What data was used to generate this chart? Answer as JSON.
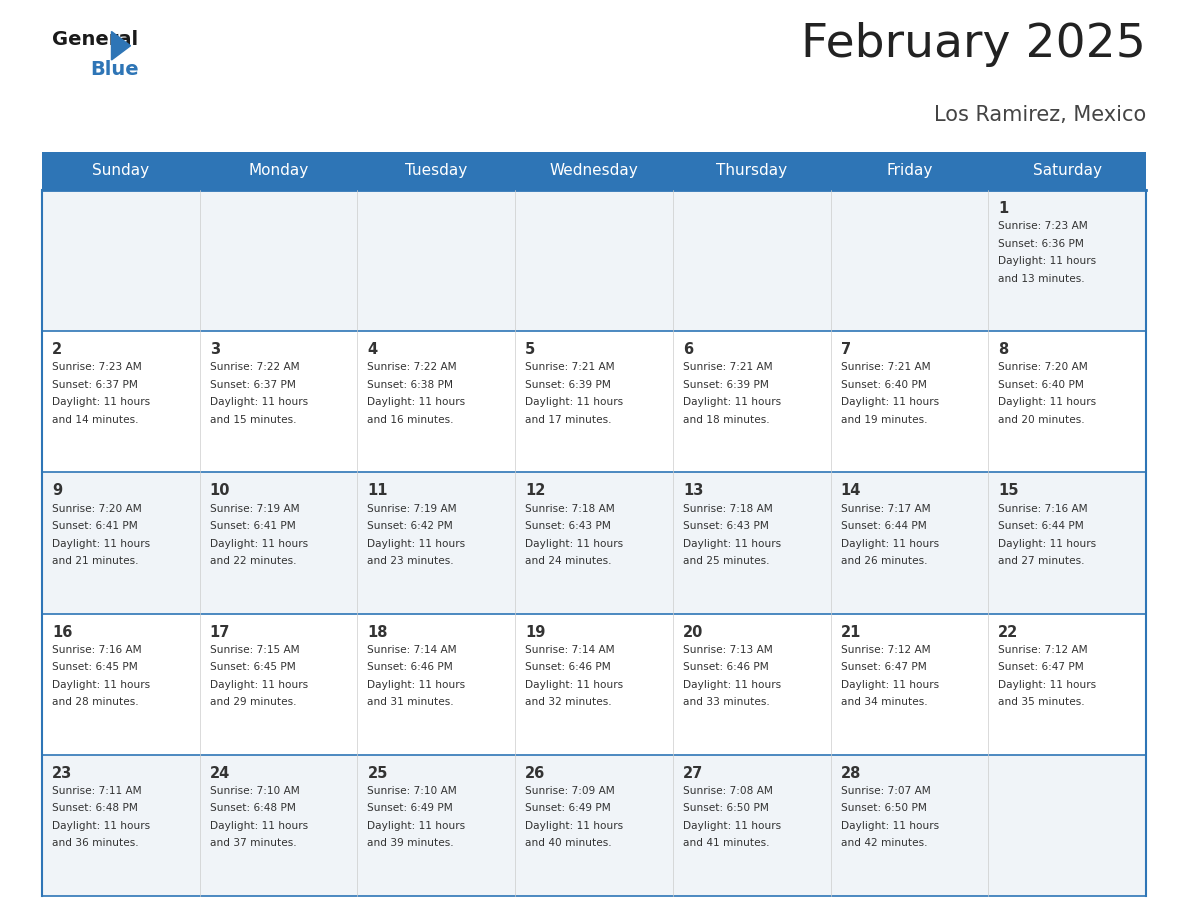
{
  "title": "February 2025",
  "subtitle": "Los Ramirez, Mexico",
  "header_color": "#2E75B6",
  "header_text_color": "#FFFFFF",
  "day_names": [
    "Sunday",
    "Monday",
    "Tuesday",
    "Wednesday",
    "Thursday",
    "Friday",
    "Saturday"
  ],
  "cell_bg_even": "#F0F4F8",
  "cell_bg_odd": "#FFFFFF",
  "border_color": "#2E75B6",
  "day_num_color": "#333333",
  "info_color": "#333333",
  "title_color": "#222222",
  "subtitle_color": "#444444",
  "days": [
    {
      "date": 1,
      "col": 6,
      "row": 0,
      "sunrise": "7:23 AM",
      "sunset": "6:36 PM",
      "daylight_hours": 11,
      "daylight_minutes": 13
    },
    {
      "date": 2,
      "col": 0,
      "row": 1,
      "sunrise": "7:23 AM",
      "sunset": "6:37 PM",
      "daylight_hours": 11,
      "daylight_minutes": 14
    },
    {
      "date": 3,
      "col": 1,
      "row": 1,
      "sunrise": "7:22 AM",
      "sunset": "6:37 PM",
      "daylight_hours": 11,
      "daylight_minutes": 15
    },
    {
      "date": 4,
      "col": 2,
      "row": 1,
      "sunrise": "7:22 AM",
      "sunset": "6:38 PM",
      "daylight_hours": 11,
      "daylight_minutes": 16
    },
    {
      "date": 5,
      "col": 3,
      "row": 1,
      "sunrise": "7:21 AM",
      "sunset": "6:39 PM",
      "daylight_hours": 11,
      "daylight_minutes": 17
    },
    {
      "date": 6,
      "col": 4,
      "row": 1,
      "sunrise": "7:21 AM",
      "sunset": "6:39 PM",
      "daylight_hours": 11,
      "daylight_minutes": 18
    },
    {
      "date": 7,
      "col": 5,
      "row": 1,
      "sunrise": "7:21 AM",
      "sunset": "6:40 PM",
      "daylight_hours": 11,
      "daylight_minutes": 19
    },
    {
      "date": 8,
      "col": 6,
      "row": 1,
      "sunrise": "7:20 AM",
      "sunset": "6:40 PM",
      "daylight_hours": 11,
      "daylight_minutes": 20
    },
    {
      "date": 9,
      "col": 0,
      "row": 2,
      "sunrise": "7:20 AM",
      "sunset": "6:41 PM",
      "daylight_hours": 11,
      "daylight_minutes": 21
    },
    {
      "date": 10,
      "col": 1,
      "row": 2,
      "sunrise": "7:19 AM",
      "sunset": "6:41 PM",
      "daylight_hours": 11,
      "daylight_minutes": 22
    },
    {
      "date": 11,
      "col": 2,
      "row": 2,
      "sunrise": "7:19 AM",
      "sunset": "6:42 PM",
      "daylight_hours": 11,
      "daylight_minutes": 23
    },
    {
      "date": 12,
      "col": 3,
      "row": 2,
      "sunrise": "7:18 AM",
      "sunset": "6:43 PM",
      "daylight_hours": 11,
      "daylight_minutes": 24
    },
    {
      "date": 13,
      "col": 4,
      "row": 2,
      "sunrise": "7:18 AM",
      "sunset": "6:43 PM",
      "daylight_hours": 11,
      "daylight_minutes": 25
    },
    {
      "date": 14,
      "col": 5,
      "row": 2,
      "sunrise": "7:17 AM",
      "sunset": "6:44 PM",
      "daylight_hours": 11,
      "daylight_minutes": 26
    },
    {
      "date": 15,
      "col": 6,
      "row": 2,
      "sunrise": "7:16 AM",
      "sunset": "6:44 PM",
      "daylight_hours": 11,
      "daylight_minutes": 27
    },
    {
      "date": 16,
      "col": 0,
      "row": 3,
      "sunrise": "7:16 AM",
      "sunset": "6:45 PM",
      "daylight_hours": 11,
      "daylight_minutes": 28
    },
    {
      "date": 17,
      "col": 1,
      "row": 3,
      "sunrise": "7:15 AM",
      "sunset": "6:45 PM",
      "daylight_hours": 11,
      "daylight_minutes": 29
    },
    {
      "date": 18,
      "col": 2,
      "row": 3,
      "sunrise": "7:14 AM",
      "sunset": "6:46 PM",
      "daylight_hours": 11,
      "daylight_minutes": 31
    },
    {
      "date": 19,
      "col": 3,
      "row": 3,
      "sunrise": "7:14 AM",
      "sunset": "6:46 PM",
      "daylight_hours": 11,
      "daylight_minutes": 32
    },
    {
      "date": 20,
      "col": 4,
      "row": 3,
      "sunrise": "7:13 AM",
      "sunset": "6:46 PM",
      "daylight_hours": 11,
      "daylight_minutes": 33
    },
    {
      "date": 21,
      "col": 5,
      "row": 3,
      "sunrise": "7:12 AM",
      "sunset": "6:47 PM",
      "daylight_hours": 11,
      "daylight_minutes": 34
    },
    {
      "date": 22,
      "col": 6,
      "row": 3,
      "sunrise": "7:12 AM",
      "sunset": "6:47 PM",
      "daylight_hours": 11,
      "daylight_minutes": 35
    },
    {
      "date": 23,
      "col": 0,
      "row": 4,
      "sunrise": "7:11 AM",
      "sunset": "6:48 PM",
      "daylight_hours": 11,
      "daylight_minutes": 36
    },
    {
      "date": 24,
      "col": 1,
      "row": 4,
      "sunrise": "7:10 AM",
      "sunset": "6:48 PM",
      "daylight_hours": 11,
      "daylight_minutes": 37
    },
    {
      "date": 25,
      "col": 2,
      "row": 4,
      "sunrise": "7:10 AM",
      "sunset": "6:49 PM",
      "daylight_hours": 11,
      "daylight_minutes": 39
    },
    {
      "date": 26,
      "col": 3,
      "row": 4,
      "sunrise": "7:09 AM",
      "sunset": "6:49 PM",
      "daylight_hours": 11,
      "daylight_minutes": 40
    },
    {
      "date": 27,
      "col": 4,
      "row": 4,
      "sunrise": "7:08 AM",
      "sunset": "6:50 PM",
      "daylight_hours": 11,
      "daylight_minutes": 41
    },
    {
      "date": 28,
      "col": 5,
      "row": 4,
      "sunrise": "7:07 AM",
      "sunset": "6:50 PM",
      "daylight_hours": 11,
      "daylight_minutes": 42
    }
  ],
  "num_rows": 5,
  "num_cols": 7
}
